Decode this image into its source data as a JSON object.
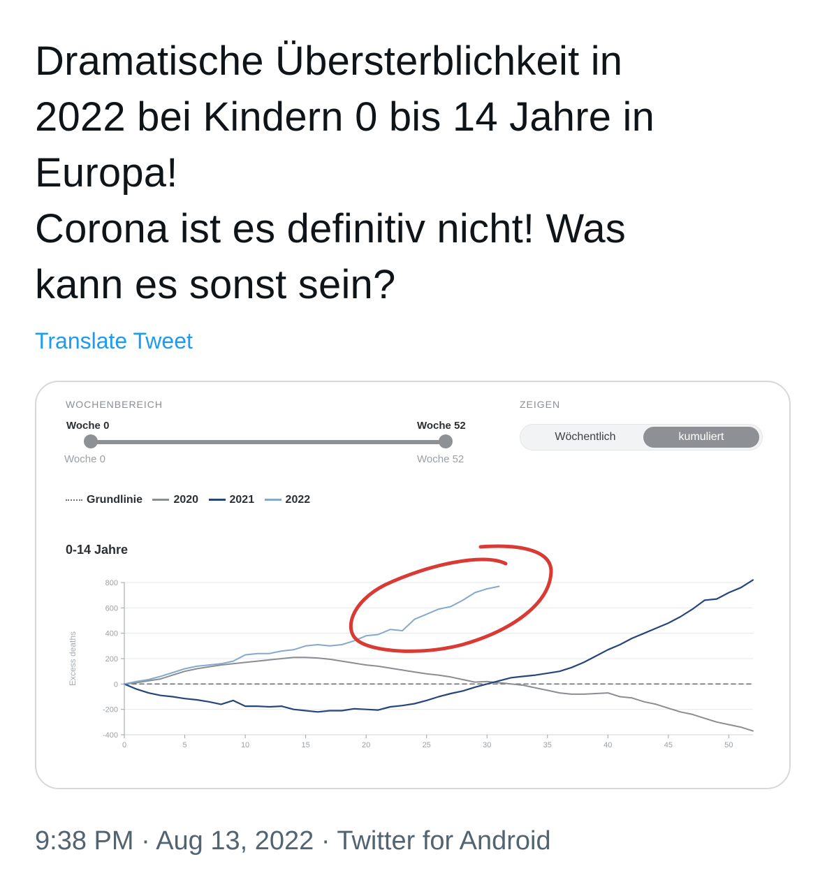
{
  "tweet": {
    "lines": [
      "Dramatische Übersterblichkeit in",
      "2022 bei Kindern 0 bis 14 Jahre in",
      "Europa!",
      "Corona ist es definitiv nicht! Was",
      "kann es sonst sein?"
    ],
    "translate_label": "Translate Tweet",
    "footer": "9:38 PM · Aug 13, 2022 · Twitter for Android"
  },
  "widget": {
    "range_label": "WOCHENBEREICH",
    "range_start_top": "Woche 0",
    "range_end_top": "Woche 52",
    "range_start_bottom": "Woche 0",
    "range_end_bottom": "Woche 52",
    "show_label": "ZEIGEN",
    "toggle_off": "Wöchentlich",
    "toggle_on": "kumuliert"
  },
  "colors": {
    "link": "#1d9bf0",
    "baseline": "#6b7177",
    "s2020": "#8a8d91",
    "s2021": "#26457d",
    "s2022": "#86a8cc",
    "annotation": "#d93a34"
  },
  "chart_data": {
    "type": "line",
    "title": "0-14 Jahre",
    "ylabel": "Excess deaths",
    "xlabel": "",
    "xlim": [
      0,
      52
    ],
    "ylim": [
      -400,
      800
    ],
    "xticks": [
      0,
      5,
      10,
      15,
      20,
      25,
      30,
      35,
      40,
      45,
      50
    ],
    "yticks": [
      -400,
      -200,
      0,
      200,
      400,
      600,
      800
    ],
    "grid": true,
    "legend": "top-left",
    "legend_entries": [
      "Grundlinie",
      "2020",
      "2021",
      "2022"
    ],
    "series": [
      {
        "name": "Grundlinie",
        "x": [
          0,
          52
        ],
        "values": [
          0,
          0
        ]
      },
      {
        "name": "2020",
        "x": [
          0,
          1,
          2,
          3,
          4,
          5,
          6,
          7,
          8,
          9,
          10,
          11,
          12,
          13,
          14,
          15,
          16,
          17,
          18,
          19,
          20,
          21,
          22,
          23,
          24,
          25,
          26,
          27,
          28,
          29,
          30,
          31,
          32,
          33,
          34,
          35,
          36,
          37,
          38,
          39,
          40,
          41,
          42,
          43,
          44,
          45,
          46,
          47,
          48,
          49,
          50,
          51,
          52
        ],
        "values": [
          0,
          10,
          25,
          40,
          70,
          100,
          120,
          135,
          150,
          160,
          170,
          180,
          190,
          200,
          210,
          210,
          205,
          195,
          180,
          165,
          150,
          140,
          125,
          110,
          95,
          80,
          70,
          55,
          35,
          15,
          20,
          10,
          0,
          -10,
          -30,
          -50,
          -70,
          -80,
          -80,
          -75,
          -70,
          -100,
          -110,
          -140,
          -160,
          -190,
          -220,
          -240,
          -270,
          -300,
          -320,
          -340,
          -370
        ]
      },
      {
        "name": "2021",
        "x": [
          0,
          1,
          2,
          3,
          4,
          5,
          6,
          7,
          8,
          9,
          10,
          11,
          12,
          13,
          14,
          15,
          16,
          17,
          18,
          19,
          20,
          21,
          22,
          23,
          24,
          25,
          26,
          27,
          28,
          29,
          30,
          31,
          32,
          33,
          34,
          35,
          36,
          37,
          38,
          39,
          40,
          41,
          42,
          43,
          44,
          45,
          46,
          47,
          48,
          49,
          50,
          51,
          52
        ],
        "values": [
          0,
          -40,
          -70,
          -90,
          -100,
          -115,
          -125,
          -140,
          -160,
          -130,
          -175,
          -175,
          -180,
          -175,
          -200,
          -210,
          -220,
          -210,
          -210,
          -195,
          -200,
          -205,
          -180,
          -170,
          -155,
          -130,
          -100,
          -75,
          -55,
          -25,
          0,
          25,
          50,
          60,
          70,
          85,
          100,
          130,
          170,
          220,
          270,
          310,
          360,
          400,
          440,
          480,
          530,
          590,
          660,
          670,
          720,
          760,
          820
        ]
      },
      {
        "name": "2022",
        "x": [
          0,
          1,
          2,
          3,
          4,
          5,
          6,
          7,
          8,
          9,
          10,
          11,
          12,
          13,
          14,
          15,
          16,
          17,
          18,
          19,
          20,
          21,
          22,
          23,
          24,
          25,
          26,
          27,
          28,
          29,
          30,
          31
        ],
        "values": [
          0,
          20,
          35,
          60,
          90,
          120,
          140,
          150,
          160,
          180,
          230,
          240,
          240,
          260,
          270,
          300,
          310,
          300,
          310,
          340,
          380,
          390,
          430,
          420,
          510,
          550,
          590,
          610,
          660,
          720,
          750,
          770
        ]
      }
    ]
  }
}
